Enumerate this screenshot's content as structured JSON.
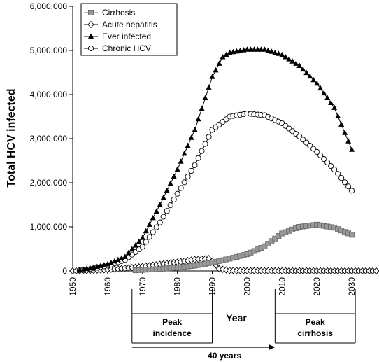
{
  "chart_data": {
    "type": "line",
    "title": "",
    "xlabel": "Year",
    "ylabel": "Total HCV infected",
    "xlim": [
      1950,
      2037
    ],
    "ylim": [
      0,
      6000000
    ],
    "x_ticks": [
      "1950",
      "1960",
      "1970",
      "1980",
      "1990",
      "2000",
      "2010",
      "2020",
      "2030"
    ],
    "x_tick_values": [
      1950,
      1960,
      1970,
      1980,
      1990,
      2000,
      2010,
      2020,
      2030
    ],
    "y_ticks": [
      "0",
      "1,000,000",
      "2,000,000",
      "3,000,000",
      "4,000,000",
      "5,000,000",
      "6,000,000"
    ],
    "y_tick_values": [
      0,
      1000000,
      2000000,
      3000000,
      4000000,
      5000000,
      6000000
    ],
    "legend_position": "top-left",
    "series": [
      {
        "name": "Cirrhosis",
        "marker": "square",
        "color": "#888888",
        "points": [
          [
            1968,
            15000
          ],
          [
            1975,
            45000
          ],
          [
            1980,
            75000
          ],
          [
            1985,
            120000
          ],
          [
            1990,
            190000
          ],
          [
            1995,
            280000
          ],
          [
            2000,
            380000
          ],
          [
            2005,
            560000
          ],
          [
            2010,
            850000
          ],
          [
            2015,
            1000000
          ],
          [
            2020,
            1050000
          ],
          [
            2025,
            980000
          ],
          [
            2030,
            820000
          ]
        ]
      },
      {
        "name": "Acute hepatitis",
        "marker": "diamond-open",
        "color": "#000000",
        "points": [
          [
            1950,
            0
          ],
          [
            1955,
            10000
          ],
          [
            1960,
            30000
          ],
          [
            1965,
            60000
          ],
          [
            1970,
            100000
          ],
          [
            1975,
            150000
          ],
          [
            1980,
            200000
          ],
          [
            1985,
            260000
          ],
          [
            1989,
            280000
          ],
          [
            1990,
            220000
          ],
          [
            1992,
            50000
          ],
          [
            1995,
            12000
          ],
          [
            2000,
            5000
          ],
          [
            2010,
            3000
          ],
          [
            2020,
            2000
          ],
          [
            2030,
            1000
          ],
          [
            2037,
            1000
          ]
        ]
      },
      {
        "name": "Ever infected",
        "marker": "triangle",
        "color": "#000000",
        "points": [
          [
            1952,
            20000
          ],
          [
            1955,
            60000
          ],
          [
            1960,
            150000
          ],
          [
            1965,
            320000
          ],
          [
            1970,
            750000
          ],
          [
            1975,
            1500000
          ],
          [
            1980,
            2300000
          ],
          [
            1985,
            3200000
          ],
          [
            1990,
            4400000
          ],
          [
            1993,
            4850000
          ],
          [
            1995,
            4950000
          ],
          [
            2000,
            5020000
          ],
          [
            2005,
            5020000
          ],
          [
            2010,
            4900000
          ],
          [
            2015,
            4650000
          ],
          [
            2020,
            4250000
          ],
          [
            2025,
            3700000
          ],
          [
            2030,
            2750000
          ]
        ]
      },
      {
        "name": "Chronic HCV",
        "marker": "circle-open",
        "color": "#000000",
        "points": [
          [
            1952,
            15000
          ],
          [
            1955,
            45000
          ],
          [
            1960,
            120000
          ],
          [
            1965,
            250000
          ],
          [
            1970,
            550000
          ],
          [
            1975,
            1100000
          ],
          [
            1980,
            1750000
          ],
          [
            1985,
            2400000
          ],
          [
            1990,
            3200000
          ],
          [
            1995,
            3500000
          ],
          [
            2000,
            3570000
          ],
          [
            2005,
            3530000
          ],
          [
            2010,
            3350000
          ],
          [
            2015,
            3050000
          ],
          [
            2020,
            2700000
          ],
          [
            2025,
            2300000
          ],
          [
            2030,
            1820000
          ]
        ]
      }
    ],
    "annotations": {
      "peak_incidence": "Peak\nincidence",
      "peak_cirrhosis": "Peak\ncirrhosis",
      "arrow_label": "40 years"
    }
  }
}
